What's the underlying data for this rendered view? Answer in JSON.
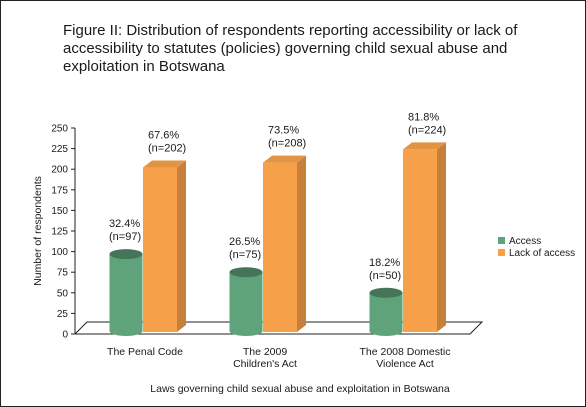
{
  "chart_data": {
    "type": "bar",
    "title": "Figure II: Distribution of respondents reporting accessibility or lack of accessibility to statutes (policies) governing child sexual abuse and exploitation in Botswana",
    "xlabel": "Laws governing child sexual abuse and exploitation in Botswana",
    "ylabel": "Number of respondents",
    "ylim": [
      0,
      250
    ],
    "yticks": [
      "0",
      "25",
      "50",
      "75",
      "100",
      "125",
      "150",
      "175",
      "200",
      "225",
      "250"
    ],
    "categories": [
      [
        "The Penal Code"
      ],
      [
        "The 2009",
        "Children's Act"
      ],
      [
        "The 2008 Domestic",
        "Violence Act"
      ]
    ],
    "series": [
      {
        "name": "Access",
        "shape": "cylinder",
        "color": "#5fa37a",
        "values": [
          97,
          75,
          50
        ],
        "labels": [
          [
            "32.4%",
            "(n=97)"
          ],
          [
            "26.5%",
            "(n=75)"
          ],
          [
            "18.2%",
            "(n=50)"
          ]
        ]
      },
      {
        "name": "Lack of access",
        "shape": "box",
        "color": "#f7a04a",
        "values": [
          202,
          208,
          224
        ],
        "labels": [
          [
            "67.6%",
            "(n=202)"
          ],
          [
            "73.5%",
            "(n=208)"
          ],
          [
            "81.8%",
            "(n=224)"
          ]
        ]
      }
    ],
    "legend": "right"
  }
}
